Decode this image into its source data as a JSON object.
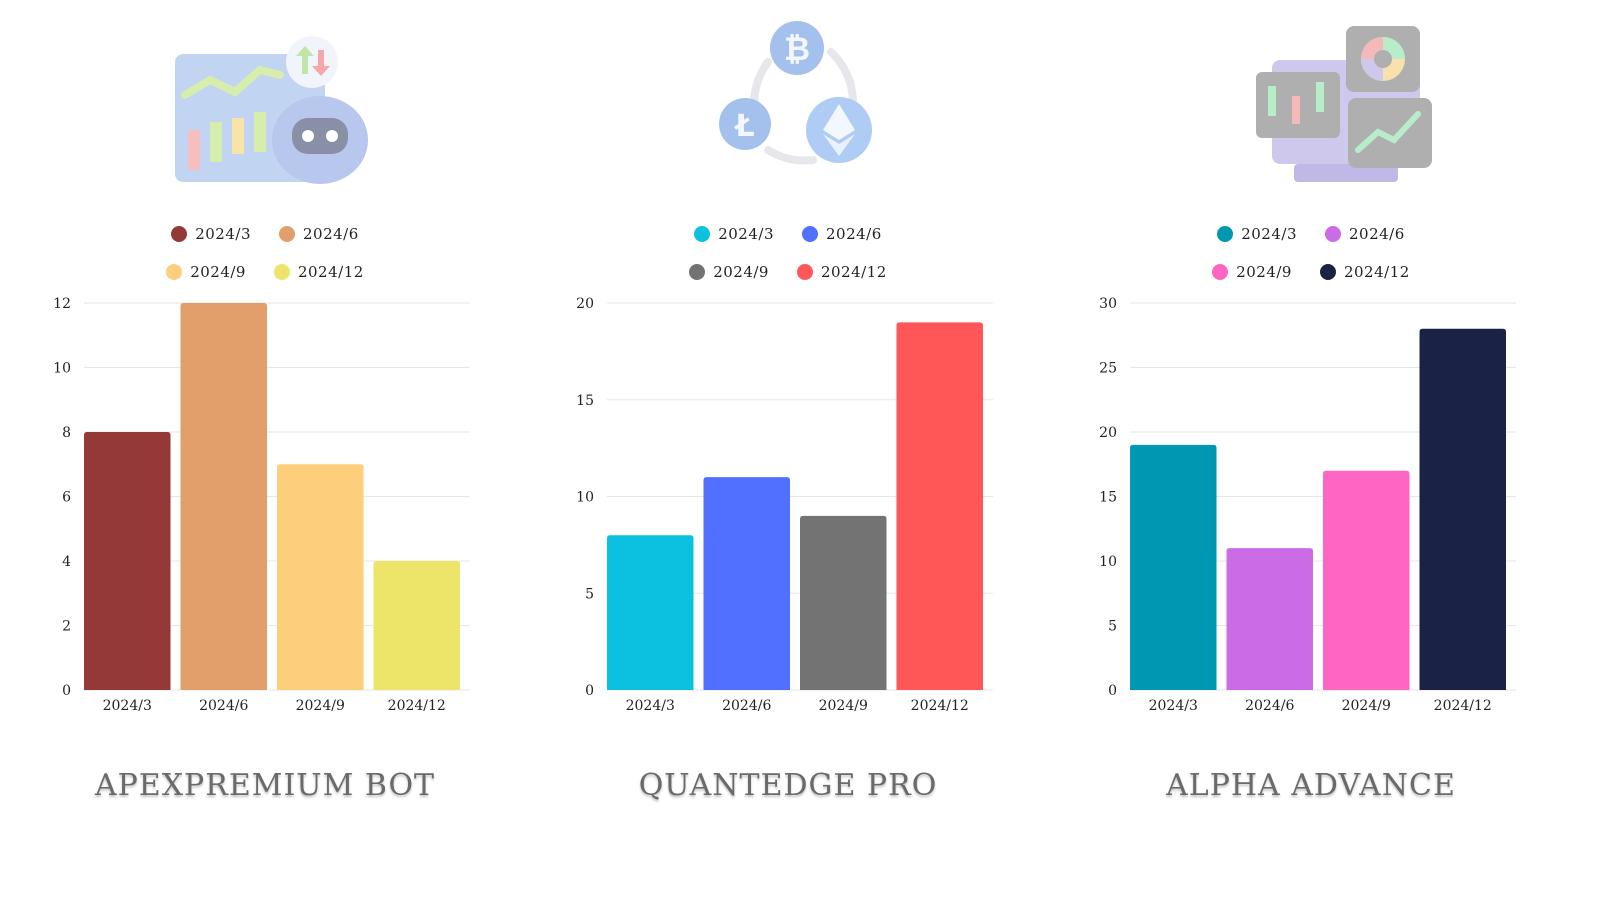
{
  "panels": [
    {
      "title": "APEXPREMIUM BOT",
      "illustration": "trading-bot-icon",
      "chart_data": {
        "type": "bar",
        "categories": [
          "2024/3",
          "2024/6",
          "2024/9",
          "2024/12"
        ],
        "values": [
          8,
          12,
          7,
          4
        ],
        "colors": [
          "#943838",
          "#E29E6B",
          "#FDCF7B",
          "#EDE56A"
        ],
        "ylim": [
          0,
          12
        ],
        "yticks": [
          0,
          2,
          4,
          6,
          8,
          10,
          12
        ],
        "legend": [
          "2024/3",
          "2024/6",
          "2024/9",
          "2024/12"
        ],
        "legend_position": "top",
        "grid": true
      }
    },
    {
      "title": "QUANTEDGE PRO",
      "illustration": "crypto-exchange-icon",
      "chart_data": {
        "type": "bar",
        "categories": [
          "2024/3",
          "2024/6",
          "2024/9",
          "2024/12"
        ],
        "values": [
          8,
          11,
          9,
          19
        ],
        "colors": [
          "#0BC1DF",
          "#5170FF",
          "#737373",
          "#FF5757"
        ],
        "ylim": [
          0,
          20
        ],
        "yticks": [
          0,
          5,
          10,
          15,
          20
        ],
        "legend": [
          "2024/3",
          "2024/6",
          "2024/9",
          "2024/12"
        ],
        "legend_position": "top",
        "grid": true
      }
    },
    {
      "title": "ALPHA ADVANCE",
      "illustration": "analytics-dashboard-icon",
      "chart_data": {
        "type": "bar",
        "categories": [
          "2024/3",
          "2024/6",
          "2024/9",
          "2024/12"
        ],
        "values": [
          19,
          11,
          17,
          28
        ],
        "colors": [
          "#0097B2",
          "#CB6CE6",
          "#FF66C4",
          "#1A2245"
        ],
        "ylim": [
          0,
          30
        ],
        "yticks": [
          0,
          5,
          10,
          15,
          20,
          25,
          30
        ],
        "legend": [
          "2024/3",
          "2024/6",
          "2024/9",
          "2024/12"
        ],
        "legend_position": "top",
        "grid": true
      }
    }
  ]
}
